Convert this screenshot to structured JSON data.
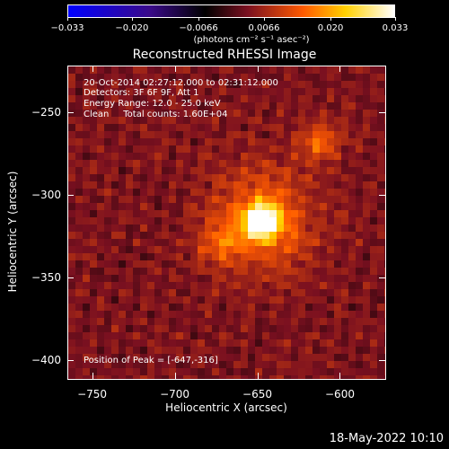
{
  "colorbar": {
    "ticks": [
      "−0.033",
      "−0.020",
      "−0.0066",
      "0.0066",
      "0.020",
      "0.033"
    ],
    "tick_values": [
      -0.033,
      -0.02,
      -0.0066,
      0.0066,
      0.02,
      0.033
    ],
    "range": [
      -0.033,
      0.033
    ],
    "units": "(photons cm⁻² s⁻¹ asec⁻²)",
    "colors": [
      "#0000ff",
      "#3a0a8a",
      "#000000",
      "#7a1020",
      "#ff5a00",
      "#ffd000",
      "#ffffff"
    ]
  },
  "chart_data": {
    "type": "heatmap",
    "title": "Reconstructed RHESSI Image",
    "xlabel": "Heliocentric X (arcsec)",
    "ylabel": "Heliocentric Y (arcsec)",
    "xlim": [
      -765,
      -572
    ],
    "ylim": [
      -412,
      -222
    ],
    "xticks": [
      -750,
      -700,
      -650,
      -600
    ],
    "yticks": [
      -250,
      -300,
      -350,
      -400
    ],
    "xtick_labels": [
      "−750",
      "−700",
      "−650",
      "−600"
    ],
    "ytick_labels": [
      "−250",
      "−300",
      "−350",
      "−400"
    ],
    "peak": {
      "x": -647,
      "y": -316,
      "value": 0.033
    },
    "secondary_sources": [
      {
        "x": -612,
        "y": -268,
        "value": 0.01
      },
      {
        "x": -672,
        "y": -330,
        "value": 0.007
      }
    ]
  },
  "info": {
    "line1": "20-Oct-2014 02:27:12.000 to 02:31:12.000",
    "line2": "Detectors: 3F 6F 9F, Att 1",
    "line3": "Energy Range: 12.0 - 25.0 keV",
    "line4": "Clean     Total counts: 1.60E+04",
    "peak": "Position of Peak = [-647,-316]"
  },
  "timestamp": "18-May-2022 10:10"
}
